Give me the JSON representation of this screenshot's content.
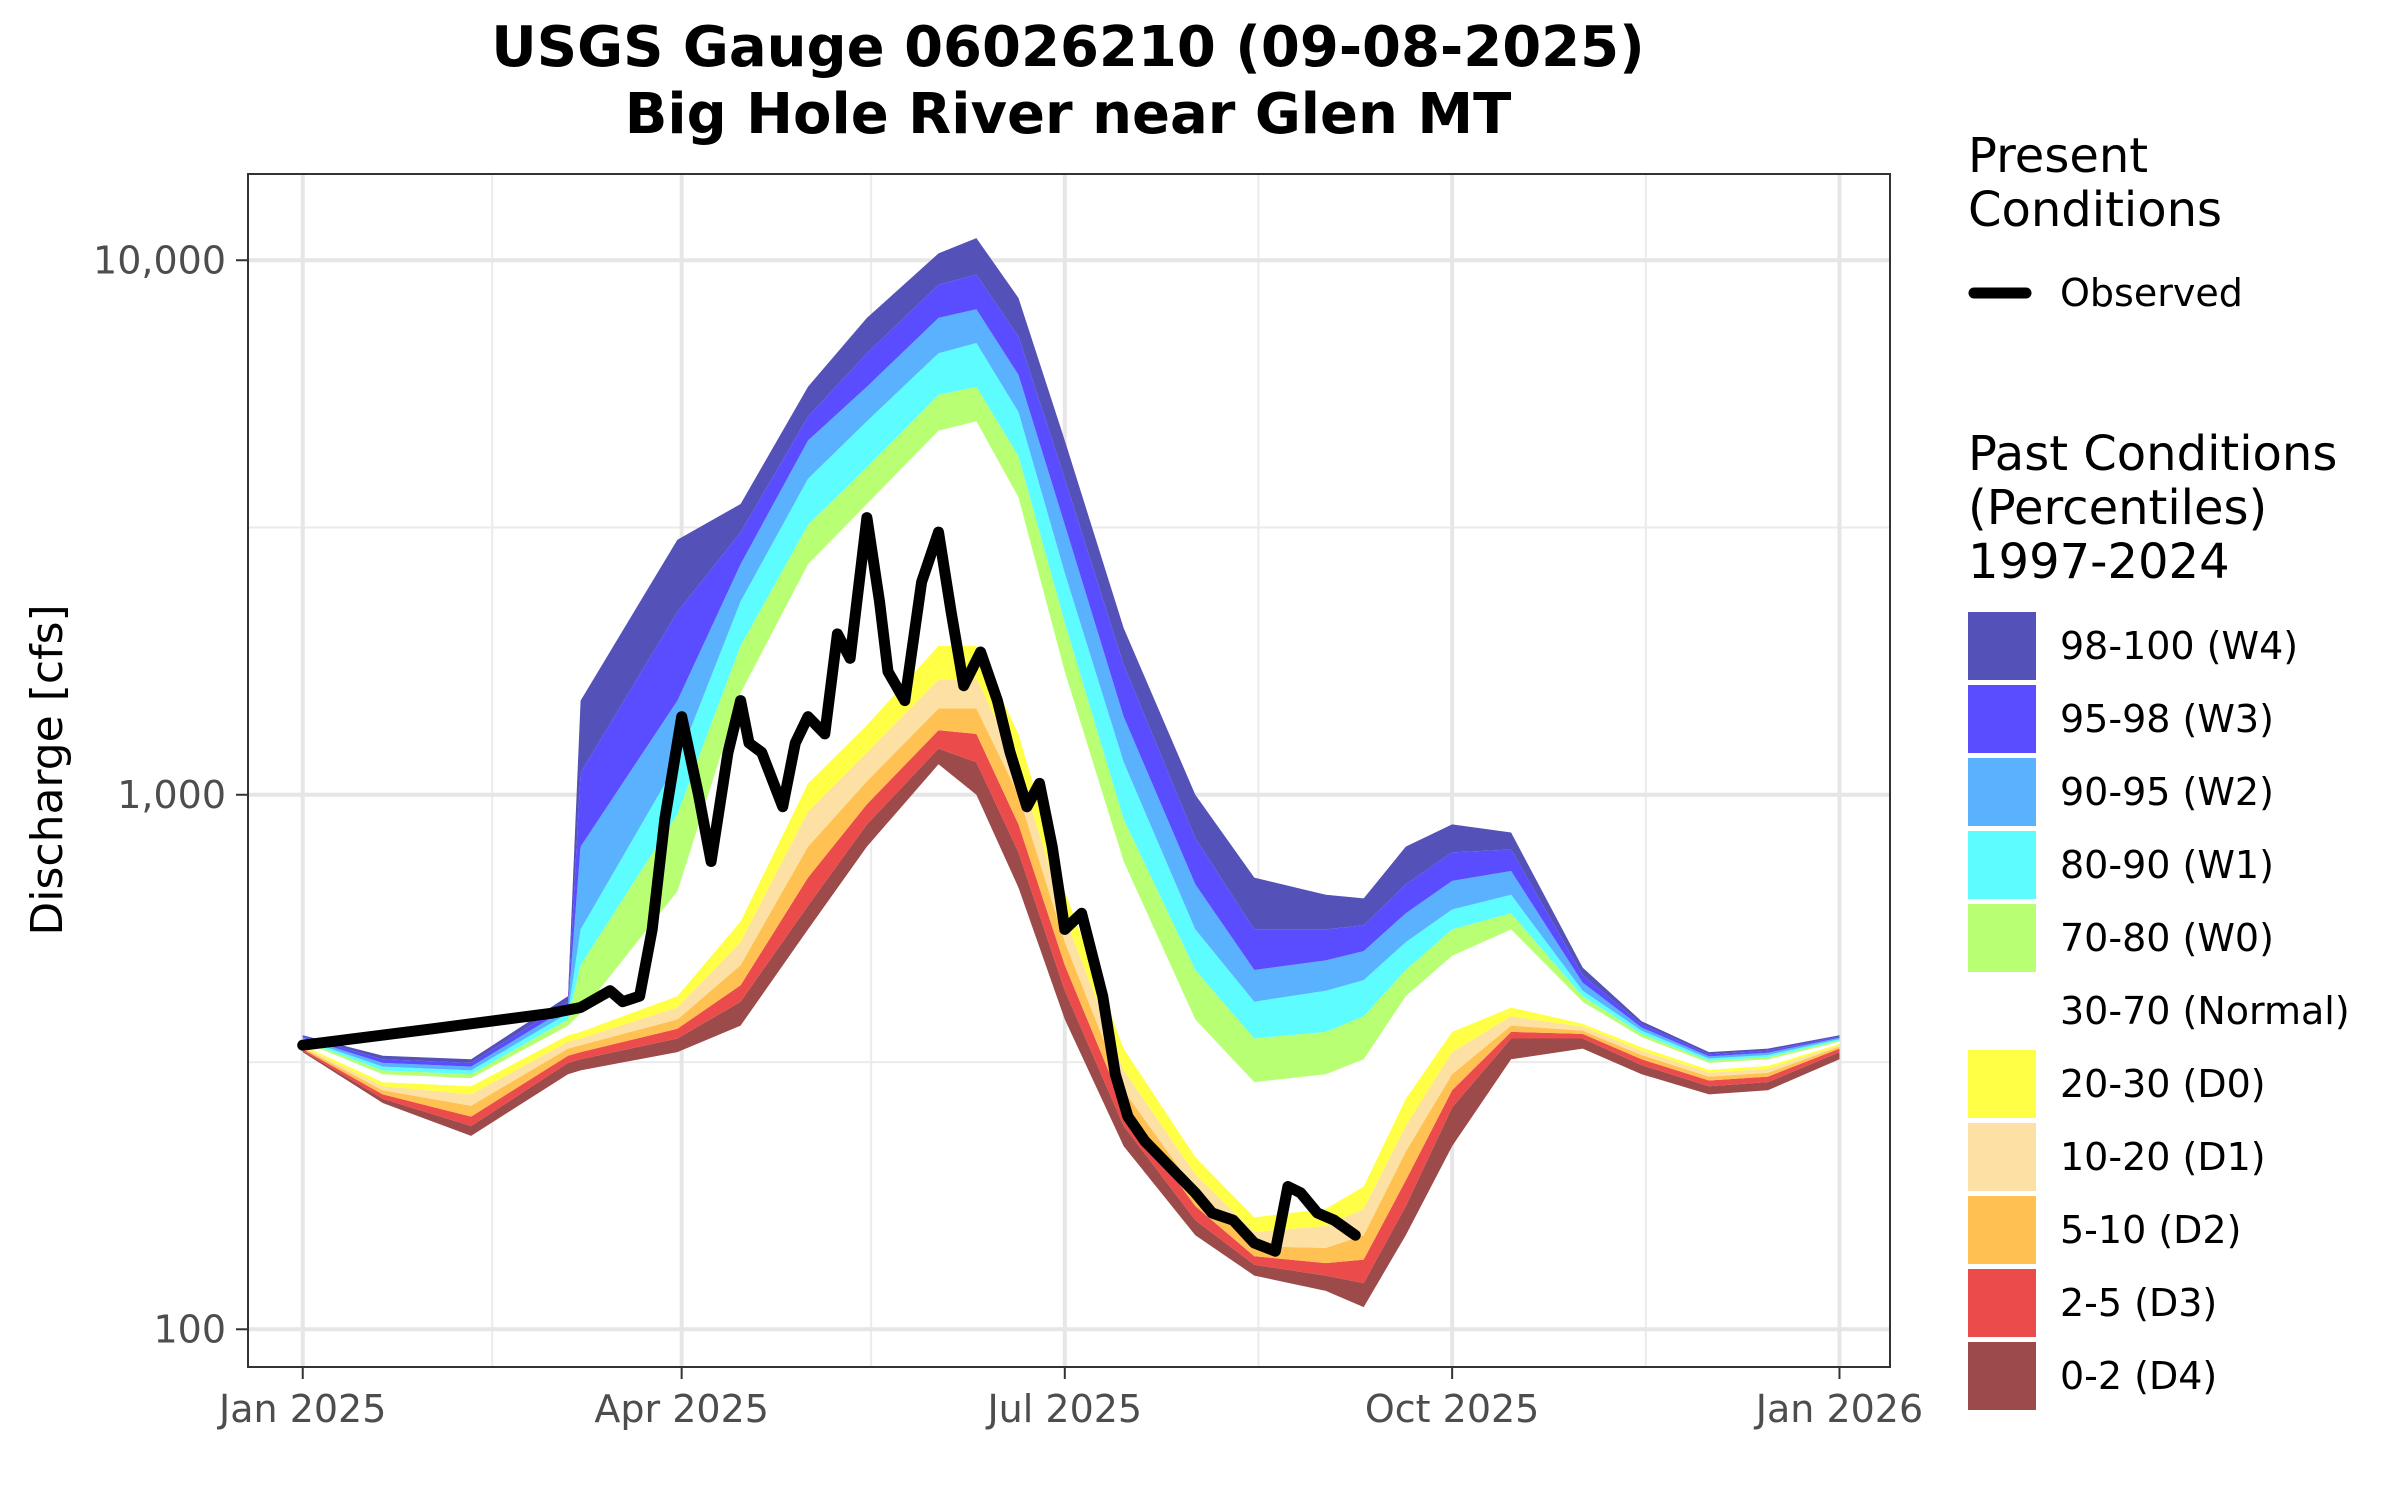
{
  "chart_data": {
    "type": "area",
    "title": "USGS Gauge 06026210 (09-08-2025)",
    "subtitle": "Big Hole River near Glen MT",
    "ylabel": "Discharge [cfs]",
    "xlabel": "",
    "y_scale": "log",
    "ylim": [
      85,
      14500
    ],
    "xlim": [
      "2024-12-19",
      "2026-01-13"
    ],
    "x_ticks": [
      {
        "date": "2025-01-01",
        "label": "Jan 2025"
      },
      {
        "date": "2025-04-01",
        "label": "Apr 2025"
      },
      {
        "date": "2025-07-01",
        "label": "Jul 2025"
      },
      {
        "date": "2025-10-01",
        "label": "Oct 2025"
      },
      {
        "date": "2026-01-01",
        "label": "Jan 2026"
      }
    ],
    "x_minor_ticks": [
      "2025-02-15",
      "2025-05-16",
      "2025-08-16",
      "2025-11-16"
    ],
    "y_ticks": [
      {
        "value": 100,
        "label": "100"
      },
      {
        "value": 1000,
        "label": "1,000"
      },
      {
        "value": 10000,
        "label": "10,000"
      }
    ],
    "y_minor_ticks": [
      316,
      3162
    ],
    "grid": true,
    "legend_position": "right",
    "legend": {
      "present_title": "Present\nConditions",
      "observed_label": "Observed",
      "past_title": "Past Conditions\n(Percentiles)\n1997-2024",
      "classes": [
        {
          "label": "98-100 (W4)",
          "color": "#5451b8"
        },
        {
          "label": "95-98 (W3)",
          "color": "#5a4dff"
        },
        {
          "label": "90-95 (W2)",
          "color": "#5ab2ff"
        },
        {
          "label": "80-90 (W1)",
          "color": "#5cfcff"
        },
        {
          "label": "70-80 (W0)",
          "color": "#b9ff74"
        },
        {
          "label": "30-70 (Normal)",
          "color": "#ffffff"
        },
        {
          "label": "20-30 (D0)",
          "color": "#ffff45"
        },
        {
          "label": "10-20 (D1)",
          "color": "#fde0a4"
        },
        {
          "label": "5-10 (D2)",
          "color": "#ffc252"
        },
        {
          "label": "2-5 (D3)",
          "color": "#ec4b4b"
        },
        {
          "label": "0-2 (D4)",
          "color": "#9d4a4a"
        }
      ]
    },
    "percentile_bands": {
      "note_units": "cfs",
      "dates": [
        "2025-01-01",
        "2025-01-20",
        "2025-02-10",
        "2025-03-05",
        "2025-03-08",
        "2025-03-31",
        "2025-04-15",
        "2025-05-01",
        "2025-05-15",
        "2025-06-01",
        "2025-06-10",
        "2025-06-20",
        "2025-07-01",
        "2025-07-15",
        "2025-08-01",
        "2025-08-15",
        "2025-09-01",
        "2025-09-10",
        "2025-09-20",
        "2025-10-01",
        "2025-10-15",
        "2025-11-01",
        "2025-11-15",
        "2025-12-01",
        "2025-12-15",
        "2026-01-01"
      ],
      "boundaries": {
        "p0": [
          330,
          265,
          230,
          300,
          305,
          330,
          370,
          560,
          800,
          1140,
          1000,
          670,
          380,
          220,
          150,
          126,
          118,
          110,
          150,
          220,
          320,
          335,
          300,
          275,
          280,
          320
        ],
        "p2": [
          332,
          270,
          240,
          315,
          320,
          350,
          410,
          620,
          880,
          1220,
          1150,
          780,
          430,
          240,
          160,
          132,
          126,
          122,
          170,
          260,
          350,
          350,
          312,
          285,
          290,
          330
        ],
        "p5": [
          334,
          275,
          250,
          325,
          330,
          365,
          440,
          700,
          960,
          1320,
          1300,
          880,
          480,
          260,
          170,
          137,
          133,
          135,
          190,
          280,
          360,
          357,
          320,
          292,
          297,
          335
        ],
        "p10": [
          336,
          280,
          262,
          335,
          340,
          380,
          480,
          800,
          1060,
          1450,
          1450,
          1000,
          530,
          280,
          182,
          143,
          142,
          150,
          215,
          300,
          370,
          362,
          326,
          297,
          302,
          338
        ],
        "p20": [
          338,
          285,
          275,
          345,
          350,
          400,
          530,
          930,
          1200,
          1640,
          1650,
          1130,
          590,
          305,
          195,
          152,
          156,
          168,
          240,
          330,
          385,
          368,
          332,
          302,
          307,
          340
        ],
        "p30": [
          340,
          290,
          285,
          355,
          360,
          420,
          580,
          1050,
          1350,
          1900,
          1900,
          1300,
          660,
          335,
          210,
          162,
          168,
          185,
          270,
          360,
          400,
          373,
          337,
          306,
          311,
          342
        ],
        "p70": [
          345,
          300,
          295,
          370,
          390,
          660,
          1550,
          2700,
          3500,
          4800,
          5000,
          3600,
          1700,
          750,
          380,
          290,
          300,
          320,
          420,
          500,
          560,
          410,
          352,
          315,
          320,
          345
        ],
        "p80": [
          347,
          305,
          300,
          380,
          480,
          920,
          1900,
          3200,
          4100,
          5600,
          5800,
          4300,
          2100,
          900,
          470,
          350,
          360,
          385,
          470,
          560,
          600,
          420,
          357,
          318,
          323,
          347
        ],
        "p90": [
          349,
          310,
          305,
          390,
          560,
          1150,
          2300,
          3900,
          5000,
          6700,
          7000,
          5200,
          2600,
          1150,
          560,
          410,
          430,
          450,
          530,
          610,
          650,
          430,
          362,
          321,
          326,
          349
        ],
        "p95": [
          351,
          315,
          310,
          400,
          800,
          1500,
          2700,
          4600,
          5800,
          7800,
          8100,
          6100,
          3200,
          1400,
          680,
          470,
          490,
          510,
          600,
          690,
          720,
          445,
          367,
          324,
          329,
          351
        ],
        "p98": [
          353,
          320,
          315,
          410,
          1100,
          2200,
          3100,
          5100,
          6700,
          9000,
          9400,
          7200,
          3900,
          1750,
          830,
          560,
          560,
          570,
          680,
          780,
          790,
          460,
          372,
          327,
          332,
          353
        ],
        "p100": [
          355,
          325,
          320,
          420,
          1500,
          3000,
          3500,
          5800,
          7800,
          10300,
          11000,
          8500,
          4600,
          2050,
          1000,
          700,
          650,
          640,
          800,
          880,
          850,
          475,
          377,
          330,
          335,
          355
        ]
      }
    },
    "series": [
      {
        "name": "Observed",
        "color": "#000000",
        "x": [
          "2025-01-01",
          "2025-02-01",
          "2025-03-01",
          "2025-03-08",
          "2025-03-15",
          "2025-03-18",
          "2025-03-22",
          "2025-03-25",
          "2025-03-28",
          "2025-04-01",
          "2025-04-05",
          "2025-04-08",
          "2025-04-12",
          "2025-04-15",
          "2025-04-17",
          "2025-04-20",
          "2025-04-25",
          "2025-04-28",
          "2025-05-01",
          "2025-05-05",
          "2025-05-08",
          "2025-05-11",
          "2025-05-15",
          "2025-05-18",
          "2025-05-20",
          "2025-05-24",
          "2025-05-28",
          "2025-06-01",
          "2025-06-04",
          "2025-06-07",
          "2025-06-11",
          "2025-06-15",
          "2025-06-18",
          "2025-06-22",
          "2025-06-25",
          "2025-06-28",
          "2025-07-01",
          "2025-07-05",
          "2025-07-10",
          "2025-07-13",
          "2025-07-16",
          "2025-07-20",
          "2025-07-25",
          "2025-08-01",
          "2025-08-05",
          "2025-08-10",
          "2025-08-15",
          "2025-08-20",
          "2025-08-23",
          "2025-08-26",
          "2025-08-30",
          "2025-09-03",
          "2025-09-08"
        ],
        "y": [
          340,
          365,
          390,
          400,
          430,
          410,
          420,
          560,
          900,
          1400,
          1000,
          750,
          1200,
          1500,
          1250,
          1200,
          950,
          1250,
          1400,
          1300,
          2000,
          1800,
          3300,
          2300,
          1700,
          1500,
          2500,
          3100,
          2200,
          1600,
          1850,
          1500,
          1200,
          950,
          1050,
          800,
          560,
          600,
          420,
          300,
          250,
          225,
          205,
          180,
          165,
          160,
          145,
          140,
          185,
          180,
          165,
          160,
          150
        ]
      }
    ]
  }
}
